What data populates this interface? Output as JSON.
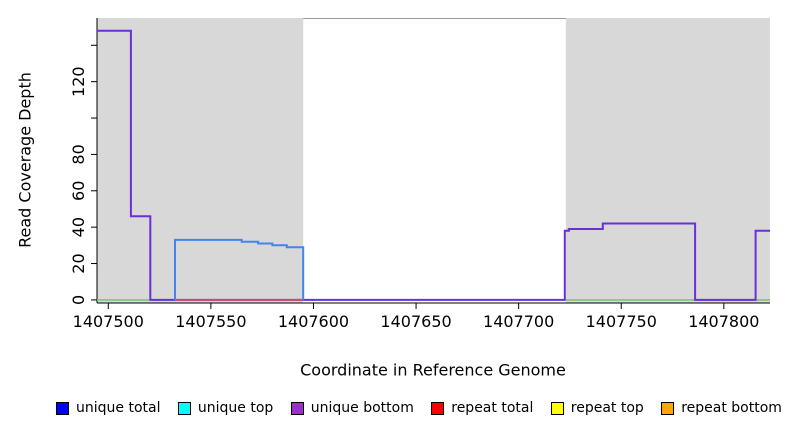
{
  "chart_data": {
    "type": "step-line",
    "title": "",
    "xlabel": "Coordinate in Reference Genome",
    "ylabel": "Read Coverage Depth",
    "x_range": [
      1407494.5,
      1407822.5
    ],
    "y_range": [
      -1.7,
      155
    ],
    "grid": false,
    "x_ticks": [
      1407500,
      1407550,
      1407600,
      1407650,
      1407700,
      1407750,
      1407800
    ],
    "y_ticks": [
      {
        "v": 0,
        "label": "0"
      },
      {
        "v": 20,
        "label": "20"
      },
      {
        "v": 40,
        "label": "40"
      },
      {
        "v": 60,
        "label": "60"
      },
      {
        "v": 80,
        "label": "80"
      },
      {
        "v": 100,
        "label": ""
      },
      {
        "v": 120,
        "label": "120"
      },
      {
        "v": 140,
        "label": ""
      }
    ],
    "shade_color": "#d8d8d8",
    "shaded_regions": [
      [
        1407494.5,
        1407595
      ],
      [
        1407723,
        1407822.5
      ]
    ],
    "series": [
      {
        "key": "baseline-green",
        "name": "zero baseline",
        "color": "#7cc67c",
        "width": 1.6,
        "segments": [
          [
            [
              1407494.5,
              0
            ],
            [
              1407525,
              0
            ]
          ],
          [
            [
              1407723,
              0
            ],
            [
              1407822.5,
              0
            ]
          ]
        ]
      },
      {
        "key": "unique-bottom",
        "name": "unique bottom",
        "color": "#6930d9",
        "width": 2,
        "segments": [
          [
            [
              1407494.5,
              148
            ],
            [
              1407511,
              148
            ],
            [
              1407511,
              46
            ],
            [
              1407520.5,
              46
            ],
            [
              1407520.5,
              0
            ],
            [
              1407722.5,
              0
            ],
            [
              1407722.5,
              38
            ],
            [
              1407724.5,
              38
            ],
            [
              1407724.5,
              39
            ],
            [
              1407741,
              39
            ],
            [
              1407741,
              42
            ],
            [
              1407786,
              42
            ],
            [
              1407786,
              0
            ],
            [
              1407815.5,
              0
            ],
            [
              1407815.5,
              38
            ],
            [
              1407822.5,
              38
            ]
          ]
        ]
      },
      {
        "key": "repeat-total",
        "name": "repeat total",
        "color": "#dc4a63",
        "width": 1.6,
        "segments": [
          [
            [
              1407532.5,
              0
            ],
            [
              1407595,
              0
            ]
          ]
        ]
      },
      {
        "key": "unique-total",
        "name": "unique total",
        "color": "#4384ee",
        "width": 2,
        "segments": [
          [
            [
              1407532.5,
              0
            ],
            [
              1407532.5,
              33
            ],
            [
              1407565,
              33
            ],
            [
              1407565,
              32
            ],
            [
              1407573,
              32
            ],
            [
              1407573,
              31
            ],
            [
              1407580,
              31
            ],
            [
              1407580,
              30
            ],
            [
              1407587,
              30
            ],
            [
              1407587,
              29
            ],
            [
              1407595,
              29
            ],
            [
              1407595,
              0
            ]
          ]
        ]
      }
    ],
    "legend": [
      {
        "label": "unique total",
        "color": "#0000ff"
      },
      {
        "label": "unique top",
        "color": "#00ffff"
      },
      {
        "label": "unique bottom",
        "color": "#9932cc"
      },
      {
        "label": "repeat total",
        "color": "#ff0000"
      },
      {
        "label": "repeat top",
        "color": "#ffff00"
      },
      {
        "label": "repeat bottom",
        "color": "#ffa500"
      }
    ],
    "legend_position": "bottom"
  }
}
